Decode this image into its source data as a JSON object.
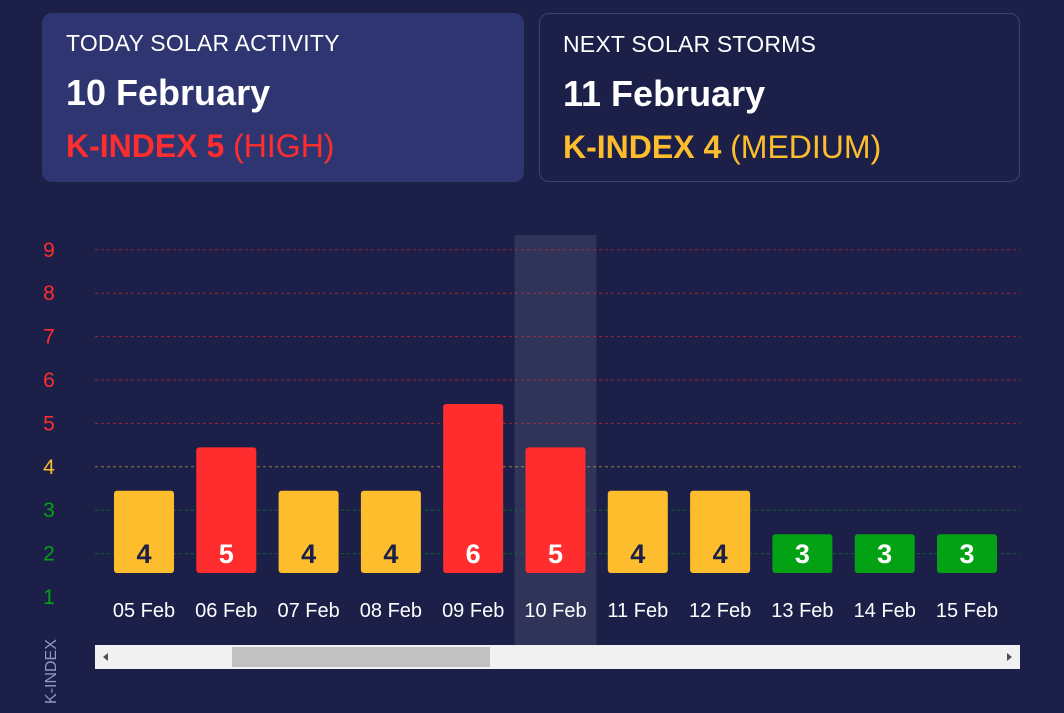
{
  "today": {
    "label": "TODAY SOLAR ACTIVITY",
    "date": "10 February",
    "kindex": "K-INDEX 5",
    "level": "(HIGH)",
    "color": "#ff2d2d"
  },
  "next": {
    "label": "NEXT SOLAR STORMS",
    "date": "11 February",
    "kindex": "K-INDEX 4",
    "level": "(MEDIUM)",
    "color": "#fdbd2d"
  },
  "chart_data": {
    "type": "bar",
    "ylabel": "K-INDEX",
    "yticks": [
      1,
      2,
      3,
      4,
      5,
      6,
      7,
      8,
      9
    ],
    "ylim": [
      1,
      9
    ],
    "categories": [
      "05 Feb",
      "06 Feb",
      "07 Feb",
      "08 Feb",
      "09 Feb",
      "10 Feb",
      "11 Feb",
      "12 Feb",
      "13 Feb",
      "14 Feb",
      "15 Feb"
    ],
    "values": [
      4,
      5,
      4,
      4,
      6,
      5,
      4,
      4,
      3,
      3,
      3
    ],
    "highlighted_category": "10 Feb",
    "colors": {
      "low": "#03a114",
      "medium": "#fdbd2d",
      "high": "#ff2d2d"
    },
    "grid": true
  }
}
